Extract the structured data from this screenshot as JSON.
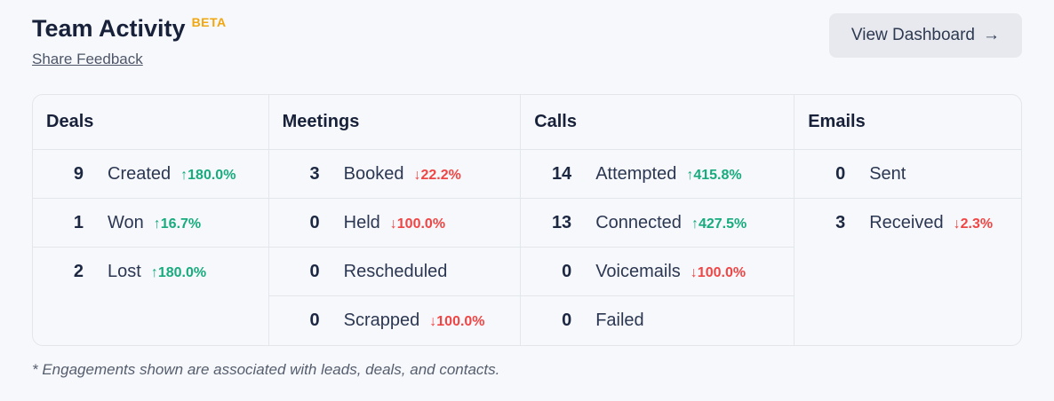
{
  "header": {
    "title": "Team Activity",
    "beta_badge": "BETA",
    "share_feedback_label": "Share Feedback",
    "view_dashboard_label": "View Dashboard"
  },
  "icons": {
    "right_arrow": "→",
    "up_arrow": "↑",
    "down_arrow": "↓"
  },
  "colors": {
    "positive": "#17ab7d",
    "negative": "#f04545",
    "beta": "#f0a60e",
    "text": "#1c2742"
  },
  "table": {
    "columns": [
      {
        "label": "Deals",
        "rows": [
          {
            "count": "9",
            "label": "Created",
            "delta": "180.0%",
            "direction": "up"
          },
          {
            "count": "1",
            "label": "Won",
            "delta": "16.7%",
            "direction": "up"
          },
          {
            "count": "2",
            "label": "Lost",
            "delta": "180.0%",
            "direction": "up"
          }
        ]
      },
      {
        "label": "Meetings",
        "rows": [
          {
            "count": "3",
            "label": "Booked",
            "delta": "22.2%",
            "direction": "down"
          },
          {
            "count": "0",
            "label": "Held",
            "delta": "100.0%",
            "direction": "down"
          },
          {
            "count": "0",
            "label": "Rescheduled",
            "delta": null,
            "direction": null
          },
          {
            "count": "0",
            "label": "Scrapped",
            "delta": "100.0%",
            "direction": "down"
          }
        ]
      },
      {
        "label": "Calls",
        "rows": [
          {
            "count": "14",
            "label": "Attempted",
            "delta": "415.8%",
            "direction": "up"
          },
          {
            "count": "13",
            "label": "Connected",
            "delta": "427.5%",
            "direction": "up"
          },
          {
            "count": "0",
            "label": "Voicemails",
            "delta": "100.0%",
            "direction": "down"
          },
          {
            "count": "0",
            "label": "Failed",
            "delta": null,
            "direction": null
          }
        ]
      },
      {
        "label": "Emails",
        "rows": [
          {
            "count": "0",
            "label": "Sent",
            "delta": null,
            "direction": null
          },
          {
            "count": "3",
            "label": "Received",
            "delta": "2.3%",
            "direction": "down"
          }
        ]
      }
    ]
  },
  "footnote": "* Engagements shown are associated with leads, deals, and contacts."
}
